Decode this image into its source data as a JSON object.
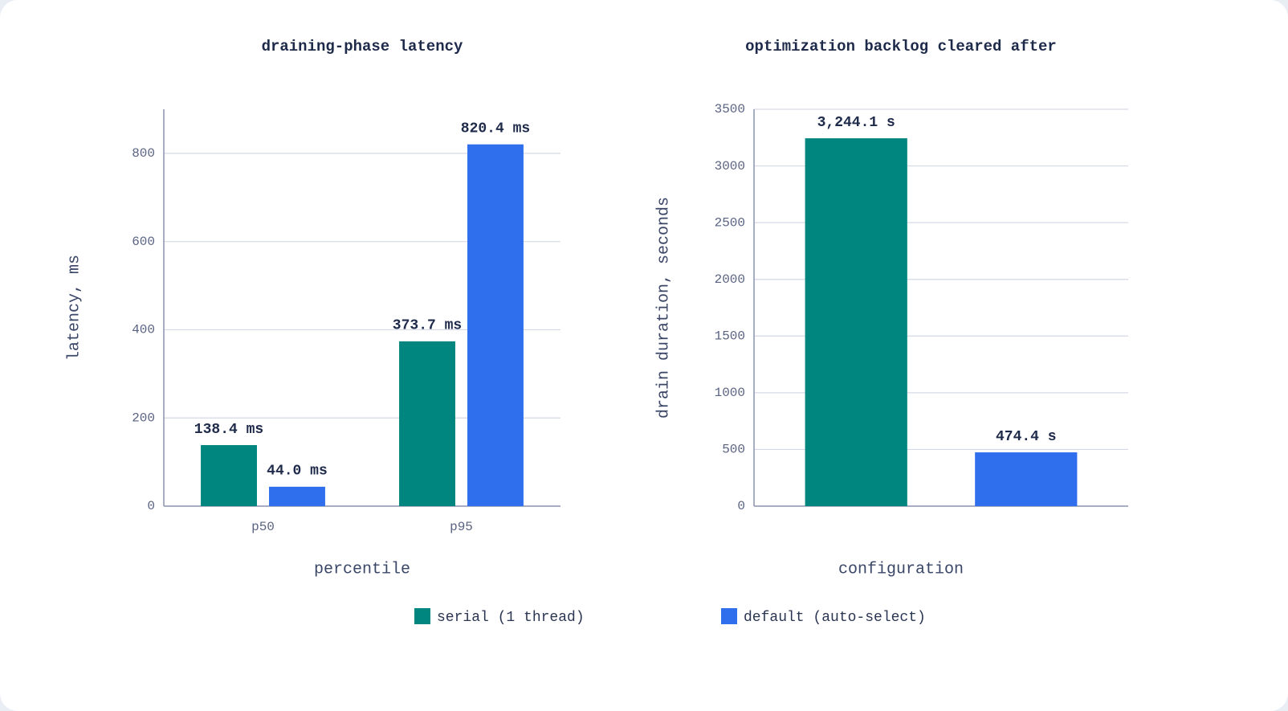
{
  "chart_data": [
    {
      "type": "bar",
      "title": "draining-phase latency",
      "x_label": "percentile",
      "y_label": "latency, ms",
      "categories": [
        "p50",
        "p95"
      ],
      "series": [
        {
          "name": "serial (1 thread)",
          "color": "#00857f",
          "values": [
            138.4,
            373.7
          ],
          "value_labels": [
            "138.4 ms",
            "373.7 ms"
          ]
        },
        {
          "name": "default (auto-select)",
          "color": "#2f6fed",
          "values": [
            44.0,
            820.4
          ],
          "value_labels": [
            "44.0 ms",
            "820.4 ms"
          ]
        }
      ],
      "ylim": [
        0,
        900
      ],
      "yticks": [
        0,
        200,
        400,
        600,
        800
      ],
      "grid": true
    },
    {
      "type": "bar",
      "title": "optimization backlog cleared after",
      "x_label": "configuration",
      "y_label": "drain duration, seconds",
      "categories": [
        null
      ],
      "series": [
        {
          "color": "#00857f",
          "values": [
            3244.1
          ],
          "value_labels": [
            "3,244.1 s"
          ]
        },
        {
          "color": "#2f6fed",
          "values": [
            474.4
          ],
          "value_labels": [
            "474.4 s"
          ]
        }
      ],
      "ylim": [
        0,
        3500
      ],
      "yticks": [
        0,
        500,
        1000,
        1500,
        2000,
        2500,
        3000,
        3500
      ],
      "grid": true
    }
  ]
}
